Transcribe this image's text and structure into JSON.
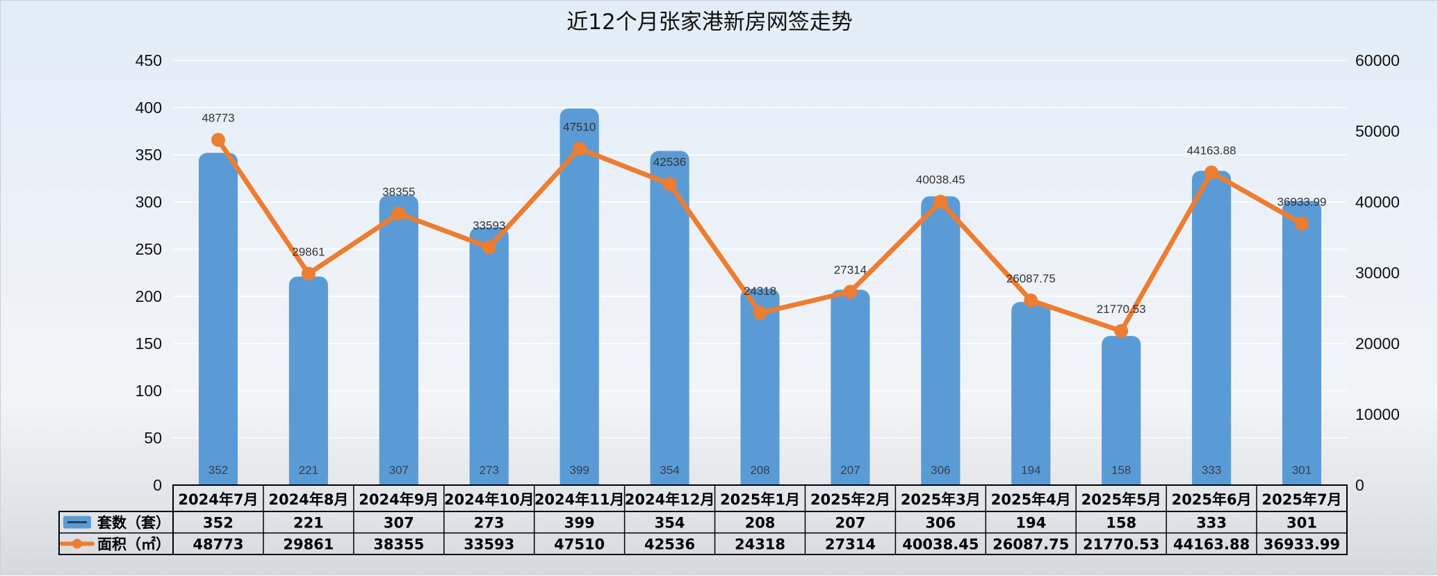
{
  "chart_data": {
    "type": "bar",
    "title": "近12个月张家港新房网签走势",
    "categories": [
      "2024年7月",
      "2024年8月",
      "2024年9月",
      "2024年10月",
      "2024年11月",
      "2024年12月",
      "2025年1月",
      "2025年2月",
      "2025年3月",
      "2025年4月",
      "2025年5月",
      "2025年6月",
      "2025年7月"
    ],
    "series": [
      {
        "name": "套数（套）",
        "kind": "bar",
        "axis": "left",
        "color": "#5b9bd5",
        "values": [
          352,
          221,
          307,
          273,
          399,
          354,
          208,
          207,
          306,
          194,
          158,
          333,
          301
        ],
        "labels": [
          "352",
          "221",
          "307",
          "273",
          "399",
          "354",
          "208",
          "207",
          "306",
          "194",
          "158",
          "333",
          "301"
        ]
      },
      {
        "name": "面积（㎡）",
        "kind": "line",
        "axis": "right",
        "color": "#ed7d31",
        "values": [
          48773,
          29861,
          38355,
          33593,
          47510,
          42536,
          24318,
          27314,
          40038.45,
          26087.75,
          21770.53,
          44163.88,
          36933.99
        ],
        "labels": [
          "48773",
          "29861",
          "38355",
          "33593",
          "47510",
          "42536",
          "24318",
          "27314",
          "40038.45",
          "26087.75",
          "21770.53",
          "44163.88",
          "36933.99"
        ]
      }
    ],
    "y_left": {
      "min": 0,
      "max": 450,
      "step": 50,
      "ticks": [
        "0",
        "50",
        "100",
        "150",
        "200",
        "250",
        "300",
        "350",
        "400",
        "450"
      ]
    },
    "y_right": {
      "min": 0,
      "max": 60000,
      "step": 10000,
      "ticks": [
        "0",
        "10000",
        "20000",
        "30000",
        "40000",
        "50000",
        "60000"
      ]
    },
    "grid": true,
    "legend": "data-table-below"
  }
}
